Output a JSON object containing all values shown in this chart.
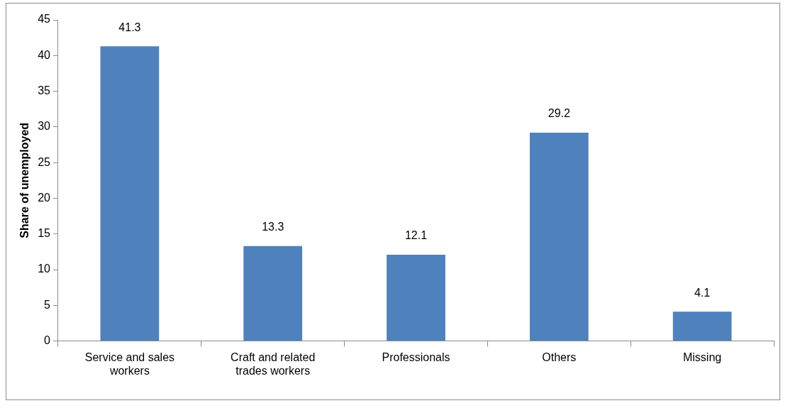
{
  "chart_data": {
    "type": "bar",
    "ylabel": "Share of unemployed",
    "categories": [
      "Service and sales workers",
      "Craft and related trades workers",
      "Professionals",
      "Others",
      "Missing"
    ],
    "values": [
      41.3,
      13.3,
      12.1,
      29.2,
      4.1
    ],
    "color": "#4f81bd",
    "ylim": [
      0,
      45
    ],
    "yticks": [
      0,
      5,
      10,
      15,
      20,
      25,
      30,
      35,
      40,
      45
    ],
    "grid": false,
    "legend": false,
    "data_labels": true
  }
}
